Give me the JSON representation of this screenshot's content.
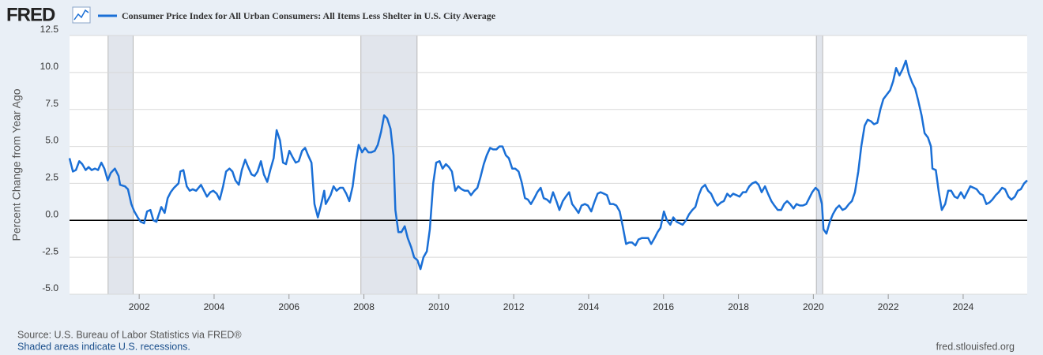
{
  "brand": "FRED",
  "footer": {
    "source": "Source: U.S. Bureau of Labor Statistics via FRED®",
    "note": "Shaded areas indicate U.S. recessions.",
    "site": "fred.stlouisfed.org"
  },
  "chart_data": {
    "type": "line",
    "y_label": "Percent Change from Year Ago",
    "xlim": [
      2000.14,
      2025.71
    ],
    "ylim": [
      -5,
      12.5
    ],
    "xticks": [
      2002,
      2004,
      2006,
      2008,
      2010,
      2012,
      2014,
      2016,
      2018,
      2020,
      2022,
      2024
    ],
    "yticks": [
      {
        "value": -5,
        "label": "-5.0"
      },
      -2.5,
      {
        "value": 0,
        "label": "0.0"
      },
      2.5,
      {
        "value": 5,
        "label": "5.0"
      },
      7.5,
      {
        "value": 10,
        "label": "10.0"
      },
      12.5
    ],
    "grid": true,
    "recessions": [
      [
        2001.17,
        2001.84
      ],
      [
        2007.92,
        2009.42
      ],
      [
        2020.08,
        2020.25
      ]
    ],
    "x": [
      2000.14,
      2000.23,
      2000.31,
      2000.4,
      2000.48,
      2000.57,
      2000.65,
      2000.73,
      2000.82,
      2000.9,
      2000.99,
      2001.07,
      2001.16,
      2001.24,
      2001.35,
      2001.45,
      2001.49,
      2001.62,
      2001.7,
      2001.79,
      2001.87,
      2001.96,
      2002.04,
      2002.13,
      2002.21,
      2002.3,
      2002.38,
      2002.46,
      2002.59,
      2002.68,
      2002.76,
      2002.84,
      2002.93,
      2003.05,
      2003.1,
      2003.18,
      2003.27,
      2003.35,
      2003.43,
      2003.52,
      2003.65,
      2003.73,
      2003.81,
      2003.9,
      2003.98,
      2004.07,
      2004.15,
      2004.24,
      2004.32,
      2004.41,
      2004.49,
      2004.57,
      2004.66,
      2004.74,
      2004.83,
      2004.91,
      2005.0,
      2005.08,
      2005.16,
      2005.25,
      2005.33,
      2005.42,
      2005.5,
      2005.59,
      2005.67,
      2005.76,
      2005.84,
      2005.92,
      2006.01,
      2006.09,
      2006.18,
      2006.26,
      2006.35,
      2006.43,
      2006.51,
      2006.6,
      2006.68,
      2006.77,
      2006.85,
      2006.94,
      2006.98,
      2007.11,
      2007.19,
      2007.27,
      2007.36,
      2007.44,
      2007.53,
      2007.61,
      2007.7,
      2007.78,
      2007.86,
      2007.95,
      2008.03,
      2008.12,
      2008.2,
      2008.29,
      2008.37,
      2008.46,
      2008.54,
      2008.62,
      2008.71,
      2008.79,
      2008.84,
      2008.92,
      2009.0,
      2009.09,
      2009.17,
      2009.26,
      2009.34,
      2009.43,
      2009.51,
      2009.59,
      2009.68,
      2009.76,
      2009.85,
      2009.93,
      2010.02,
      2010.1,
      2010.19,
      2010.27,
      2010.35,
      2010.44,
      2010.52,
      2010.61,
      2010.69,
      2010.78,
      2010.86,
      2010.95,
      2011.03,
      2011.11,
      2011.2,
      2011.28,
      2011.37,
      2011.45,
      2011.54,
      2011.62,
      2011.7,
      2011.79,
      2011.87,
      2011.96,
      2012.04,
      2012.13,
      2012.21,
      2012.3,
      2012.38,
      2012.46,
      2012.55,
      2012.63,
      2012.72,
      2012.8,
      2012.89,
      2012.97,
      2013.05,
      2013.14,
      2013.22,
      2013.31,
      2013.39,
      2013.48,
      2013.56,
      2013.65,
      2013.73,
      2013.81,
      2013.9,
      2013.98,
      2014.07,
      2014.15,
      2014.24,
      2014.32,
      2014.41,
      2014.49,
      2014.57,
      2014.66,
      2014.74,
      2014.83,
      2014.91,
      2015.0,
      2015.08,
      2015.16,
      2015.25,
      2015.33,
      2015.42,
      2015.5,
      2015.59,
      2015.67,
      2015.76,
      2015.84,
      2015.92,
      2016.01,
      2016.09,
      2016.18,
      2016.26,
      2016.35,
      2016.43,
      2016.51,
      2016.6,
      2016.68,
      2016.77,
      2016.85,
      2016.94,
      2017.02,
      2017.11,
      2017.19,
      2017.27,
      2017.36,
      2017.44,
      2017.53,
      2017.61,
      2017.7,
      2017.78,
      2017.86,
      2017.95,
      2018.03,
      2018.12,
      2018.2,
      2018.29,
      2018.37,
      2018.46,
      2018.54,
      2018.62,
      2018.71,
      2018.79,
      2018.88,
      2018.96,
      2019.05,
      2019.14,
      2019.22,
      2019.3,
      2019.38,
      2019.47,
      2019.55,
      2019.64,
      2019.72,
      2019.81,
      2019.89,
      2019.97,
      2020.06,
      2020.14,
      2020.23,
      2020.27,
      2020.35,
      2020.44,
      2020.52,
      2020.61,
      2020.69,
      2020.78,
      2020.86,
      2020.95,
      2021.03,
      2021.11,
      2021.2,
      2021.28,
      2021.37,
      2021.45,
      2021.54,
      2021.62,
      2021.71,
      2021.79,
      2021.87,
      2021.96,
      2022.05,
      2022.13,
      2022.21,
      2022.3,
      2022.38,
      2022.47,
      2022.55,
      2022.64,
      2022.72,
      2022.8,
      2022.89,
      2022.97,
      2023.06,
      2023.14,
      2023.18,
      2023.27,
      2023.35,
      2023.43,
      2023.52,
      2023.6,
      2023.68,
      2023.77,
      2023.85,
      2023.94,
      2024.03,
      2024.11,
      2024.19,
      2024.28,
      2024.36,
      2024.45,
      2024.53,
      2024.62,
      2024.7,
      2024.78,
      2024.87,
      2024.95,
      2025.04,
      2025.12,
      2025.21,
      2025.29,
      2025.38,
      2025.46,
      2025.54,
      2025.63,
      2025.71
    ],
    "series": [
      {
        "name": "Consumer Price Index for All Urban Consumers: All Items Less Shelter in U.S. City Average",
        "color": "#1a6fd6",
        "values": [
          4.2,
          3.3,
          3.4,
          4.0,
          3.8,
          3.4,
          3.6,
          3.4,
          3.5,
          3.4,
          3.9,
          3.5,
          2.7,
          3.2,
          3.5,
          3.0,
          2.4,
          2.3,
          2.1,
          1.1,
          0.6,
          0.2,
          -0.1,
          -0.2,
          0.6,
          0.7,
          0.0,
          -0.1,
          0.9,
          0.5,
          1.5,
          1.9,
          2.2,
          2.5,
          3.3,
          3.4,
          2.3,
          2.0,
          2.1,
          2.0,
          2.4,
          2.0,
          1.6,
          1.9,
          2.0,
          1.8,
          1.4,
          2.3,
          3.3,
          3.5,
          3.3,
          2.7,
          2.4,
          3.4,
          4.1,
          3.6,
          3.1,
          3.0,
          3.3,
          4.0,
          3.1,
          2.6,
          3.4,
          4.2,
          6.1,
          5.4,
          3.9,
          3.8,
          4.7,
          4.3,
          3.9,
          4.0,
          4.7,
          4.9,
          4.4,
          3.9,
          1.1,
          0.2,
          1.0,
          2.0,
          1.1,
          1.7,
          2.3,
          2.0,
          2.2,
          2.2,
          1.8,
          1.3,
          2.3,
          3.9,
          5.1,
          4.6,
          4.9,
          4.6,
          4.6,
          4.7,
          5.1,
          6.0,
          7.1,
          6.9,
          6.2,
          4.4,
          0.7,
          -0.8,
          -0.8,
          -0.4,
          -1.2,
          -1.8,
          -2.5,
          -2.7,
          -3.3,
          -2.5,
          -2.1,
          -0.6,
          2.5,
          3.9,
          4.0,
          3.5,
          3.8,
          3.6,
          3.3,
          2.0,
          2.3,
          2.1,
          2.0,
          2.0,
          1.7,
          2.0,
          2.2,
          2.9,
          3.8,
          4.4,
          4.9,
          4.8,
          4.8,
          5.0,
          5.0,
          4.4,
          4.2,
          3.5,
          3.5,
          3.3,
          2.6,
          1.5,
          1.4,
          1.1,
          1.5,
          1.9,
          2.2,
          1.5,
          1.4,
          1.2,
          1.9,
          1.3,
          0.7,
          1.3,
          1.6,
          1.9,
          1.1,
          0.8,
          0.5,
          1.0,
          1.1,
          1.0,
          0.6,
          1.2,
          1.8,
          1.9,
          1.8,
          1.7,
          1.1,
          1.1,
          1.0,
          0.6,
          -0.4,
          -1.6,
          -1.5,
          -1.5,
          -1.7,
          -1.3,
          -1.2,
          -1.2,
          -1.2,
          -1.6,
          -1.2,
          -0.8,
          -0.5,
          0.6,
          0.0,
          -0.3,
          0.2,
          -0.1,
          -0.2,
          -0.3,
          0.0,
          0.4,
          0.7,
          0.9,
          1.7,
          2.2,
          2.4,
          2.0,
          1.8,
          1.3,
          1.0,
          1.2,
          1.3,
          1.8,
          1.6,
          1.8,
          1.7,
          1.6,
          1.9,
          1.9,
          2.3,
          2.5,
          2.6,
          2.4,
          1.9,
          2.3,
          1.8,
          1.3,
          1.0,
          0.7,
          0.7,
          1.1,
          1.3,
          1.1,
          0.8,
          1.1,
          1.0,
          1.0,
          1.1,
          1.5,
          1.9,
          2.2,
          2.0,
          1.1,
          -0.6,
          -0.9,
          -0.1,
          0.4,
          0.8,
          1.0,
          0.7,
          0.8,
          1.1,
          1.3,
          1.9,
          3.3,
          5.0,
          6.4,
          6.8,
          6.7,
          6.5,
          6.6,
          7.5,
          8.2,
          8.5,
          8.8,
          9.4,
          10.3,
          9.8,
          10.2,
          10.8,
          9.9,
          9.3,
          8.9,
          8.1,
          7.1,
          5.9,
          5.6,
          5.0,
          3.5,
          3.4,
          1.9,
          0.7,
          1.1,
          2.0,
          2.0,
          1.6,
          1.5,
          1.9,
          1.5,
          1.9,
          2.3,
          2.2,
          2.1,
          1.8,
          1.7,
          1.1,
          1.2,
          1.4,
          1.7,
          1.9,
          2.2,
          2.1,
          1.6,
          1.4,
          1.6,
          2.0,
          2.1,
          2.5,
          2.7
        ]
      }
    ]
  }
}
